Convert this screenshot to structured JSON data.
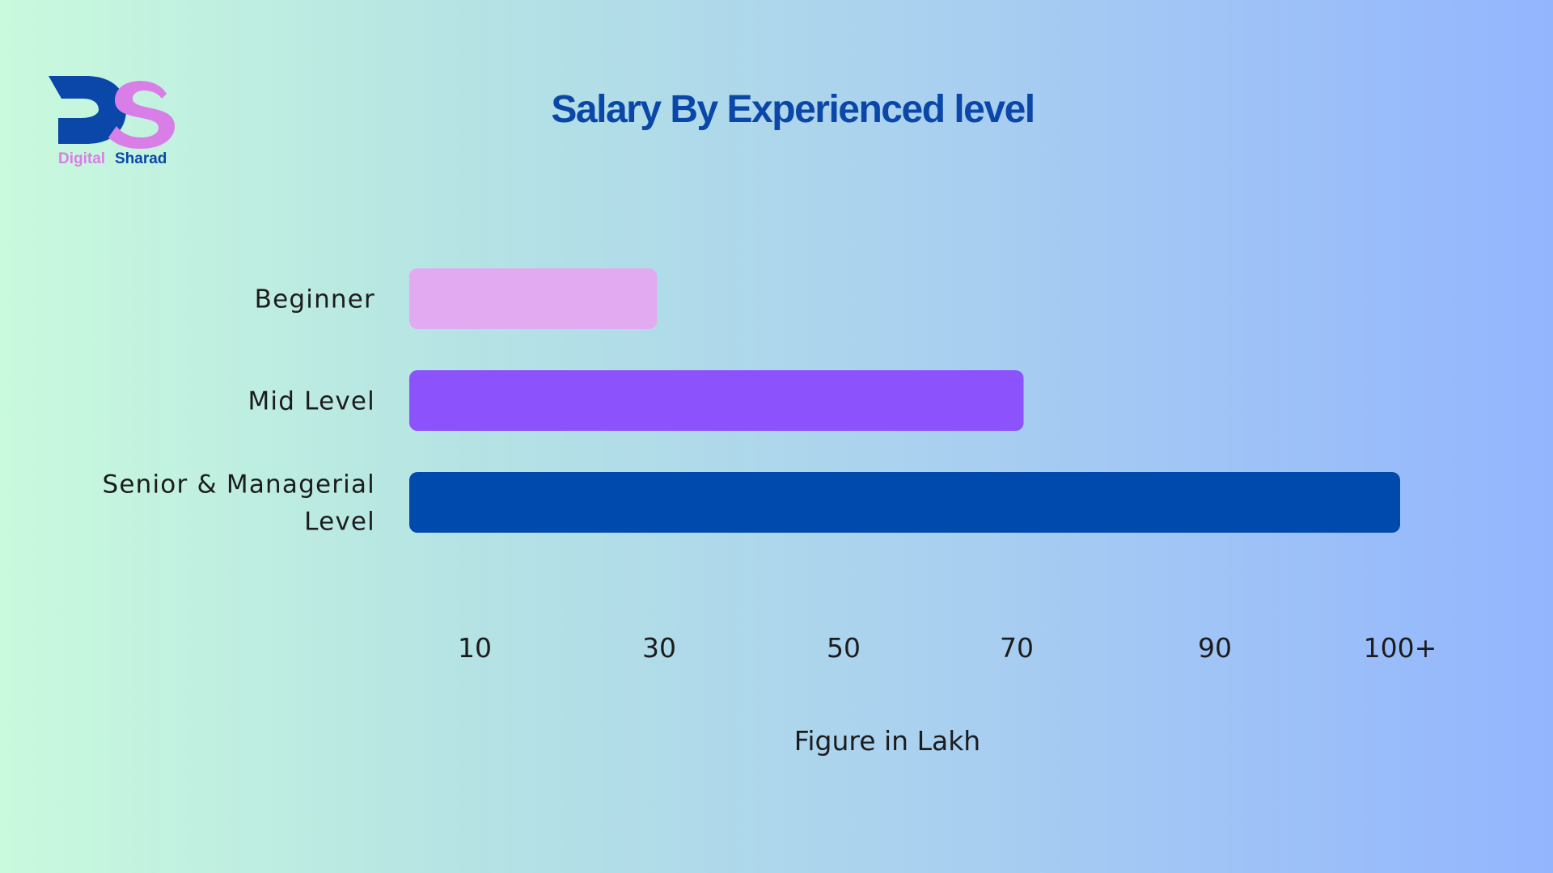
{
  "logo": {
    "monogram": "DS",
    "word1": "Digital",
    "word2": "Sharad"
  },
  "colors": {
    "brand_blue": "#0b47a8",
    "brand_pink": "#d97ee6"
  },
  "chart_data": {
    "type": "bar",
    "orientation": "horizontal",
    "title": "Salary By Experienced level",
    "xlabel": "Figure in Lakh",
    "ylabel": "",
    "categories": [
      {
        "lines": [
          "Beginner"
        ],
        "value": 25,
        "color": "#e2aaf0"
      },
      {
        "lines": [
          "Mid Level"
        ],
        "value": 62,
        "color": "#8c53fd"
      },
      {
        "lines": [
          "Senior & Managerial",
          "Level"
        ],
        "value": 100,
        "color": "#004aad"
      }
    ],
    "xticks": [
      {
        "value": 10,
        "label": "10"
      },
      {
        "value": 30,
        "label": "30"
      },
      {
        "value": 50,
        "label": "50"
      },
      {
        "value": 70,
        "label": "70"
      },
      {
        "value": 90,
        "label": "90"
      },
      {
        "value": 100,
        "label": "100+"
      }
    ],
    "grid": false,
    "legend": "none"
  }
}
